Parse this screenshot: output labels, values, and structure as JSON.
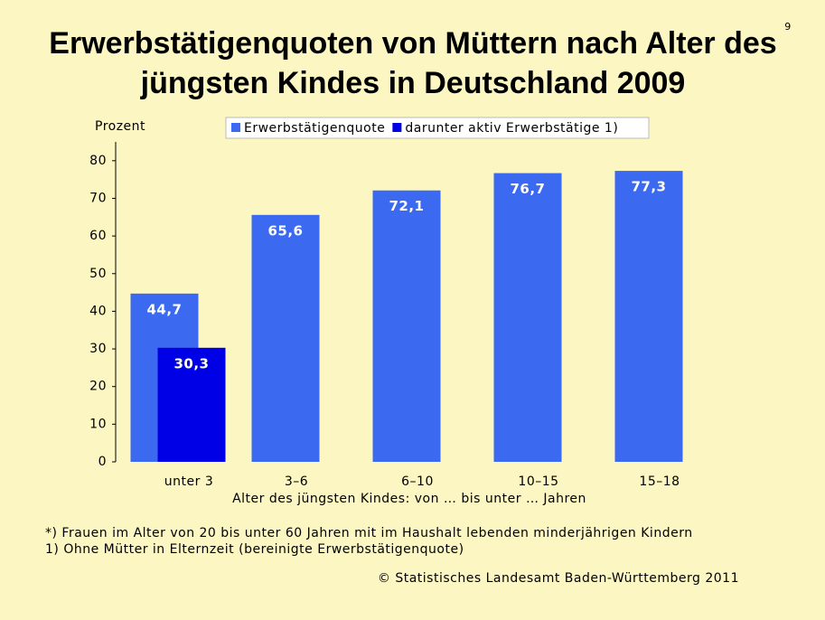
{
  "page_number": "9",
  "footnotes": [
    "*) Frauen im Alter von 20 bis unter 60 Jahren mit im Haushalt lebenden minderjährigen Kindern",
    "1) Ohne Mütter in Elternzeit (bereinigte Erwerbstätigenquote)"
  ],
  "source": "© Statistisches Landesamt Baden-Württemberg 2011",
  "chart_data": {
    "type": "bar",
    "title": [
      "Erwerbstätigenquoten von Müttern nach Alter des",
      "jüngsten Kindes in Deutschland 2009"
    ],
    "y_label": "Prozent",
    "x_label": "Alter des jüngsten Kindes: von … bis unter … Jahren",
    "categories": [
      "unter 3",
      "3–6",
      "6–10",
      "10–15",
      "15–18"
    ],
    "series": [
      {
        "name": "Erwerbstätigenquote",
        "color": "#3b6af0",
        "values": [
          44.7,
          65.6,
          72.1,
          76.7,
          77.3
        ],
        "value_labels": [
          "44,7",
          "65,6",
          "72,1",
          "76,7",
          "77,3"
        ]
      },
      {
        "name": "darunter aktiv Erwerbstätige 1)",
        "color": "#0000e6",
        "values": [
          30.3,
          null,
          null,
          null,
          null
        ],
        "value_labels": [
          "30,3",
          null,
          null,
          null,
          null
        ]
      }
    ],
    "ylim": [
      0,
      85
    ],
    "yticks": [
      0,
      10,
      20,
      30,
      40,
      50,
      60,
      70,
      80
    ],
    "legend": "top"
  }
}
